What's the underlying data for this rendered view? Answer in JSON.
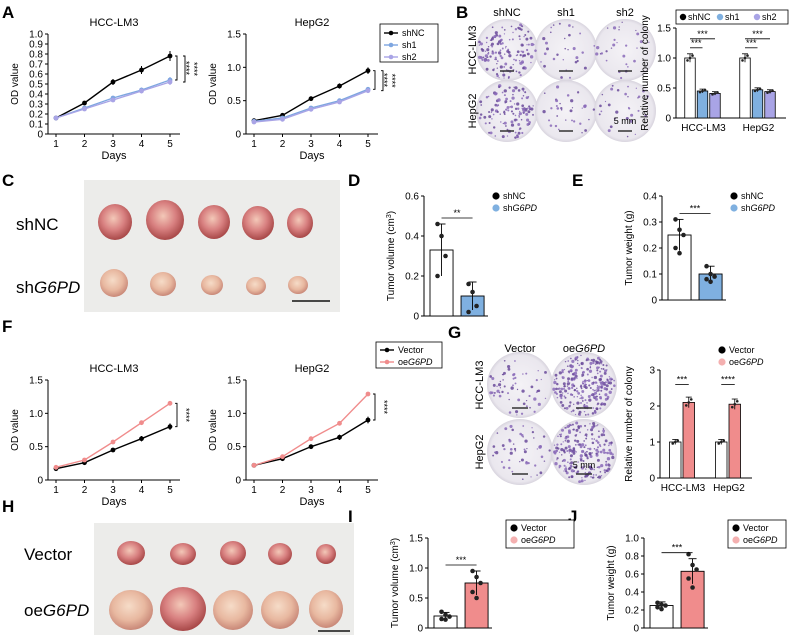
{
  "panels": {
    "A": "A",
    "B": "B",
    "C": "C",
    "D": "D",
    "E": "E",
    "F": "F",
    "G": "G",
    "H": "H",
    "I": "I",
    "J": "J"
  },
  "colors": {
    "black": "#000000",
    "blue": "#7ea6e0",
    "lavender": "#a9a4e6",
    "pink": "#f08c8c",
    "lightpink": "#f4b0b0",
    "barblue": "#7fb0e0"
  },
  "plate_labels": {
    "B_cols": [
      "shNC",
      "sh1",
      "sh2"
    ],
    "B_rows": [
      "HCC-LM3",
      "HepG2"
    ],
    "B_scale": "5 mm",
    "G_cols": [
      "Vector",
      "oeG6PD"
    ],
    "G_rows": [
      "HCC-LM3",
      "HepG2"
    ],
    "G_scale": "5 mm"
  },
  "photo_labels": {
    "C": [
      "shNC",
      "shG6PD"
    ],
    "H": [
      "Vector",
      "oeG6PD"
    ]
  },
  "chart_data": [
    {
      "id": "A1",
      "type": "line",
      "title": "HCC-LM3",
      "xlabel": "Days",
      "ylabel": "OD value",
      "x": [
        1,
        2,
        3,
        4,
        5
      ],
      "ylim": [
        0,
        1.0
      ],
      "yticks": [
        "0",
        "0.1",
        "0.2",
        "0.3",
        "0.4",
        "0.5",
        "0.6",
        "0.7",
        "0.8",
        "0.9",
        "1.0"
      ],
      "series": [
        {
          "name": "shNC",
          "values": [
            0.16,
            0.31,
            0.52,
            0.64,
            0.78
          ]
        },
        {
          "name": "sh1",
          "values": [
            0.16,
            0.26,
            0.36,
            0.44,
            0.54
          ]
        },
        {
          "name": "sh2",
          "values": [
            0.16,
            0.25,
            0.34,
            0.43,
            0.52
          ]
        }
      ],
      "annotations": [
        "****",
        "****"
      ]
    },
    {
      "id": "A2",
      "type": "line",
      "title": "HepG2",
      "xlabel": "Days",
      "ylabel": "OD value",
      "x": [
        1,
        2,
        3,
        4,
        5
      ],
      "ylim": [
        0,
        1.5
      ],
      "yticks": [
        "0",
        "0.5",
        "1.0",
        "1.5"
      ],
      "series": [
        {
          "name": "shNC",
          "values": [
            0.2,
            0.28,
            0.53,
            0.72,
            0.95
          ]
        },
        {
          "name": "sh1",
          "values": [
            0.19,
            0.24,
            0.39,
            0.5,
            0.67
          ]
        },
        {
          "name": "sh2",
          "values": [
            0.18,
            0.22,
            0.37,
            0.48,
            0.65
          ]
        }
      ],
      "legend": [
        "shNC",
        "sh1",
        "sh2"
      ],
      "annotations": [
        "****",
        "****"
      ]
    },
    {
      "id": "B",
      "type": "bar",
      "ylabel": "Relative number of colony",
      "ylim": [
        0,
        1.5
      ],
      "yticks": [
        "0",
        "0.5",
        "1.0",
        "1.5"
      ],
      "categories": [
        "HCC-LM3",
        "HepG2"
      ],
      "series": [
        {
          "name": "shNC",
          "values": [
            1.0,
            1.0
          ]
        },
        {
          "name": "sh1",
          "values": [
            0.45,
            0.47
          ]
        },
        {
          "name": "sh2",
          "values": [
            0.41,
            0.44
          ]
        }
      ],
      "legend": [
        "shNC",
        "sh1",
        "sh2"
      ],
      "annotations": [
        "***",
        "***",
        "***",
        "***"
      ]
    },
    {
      "id": "D",
      "type": "bar",
      "ylabel": "Tumor volume (cm³)",
      "ylim": [
        0,
        0.6
      ],
      "yticks": [
        "0",
        "0.2",
        "0.4",
        "0.6"
      ],
      "categories": [
        "shNC",
        "shG6PD"
      ],
      "values": [
        0.33,
        0.1
      ],
      "errors": [
        0.13,
        0.07
      ],
      "points": [
        [
          0.46,
          0.4,
          0.3,
          0.2
        ],
        [
          0.16,
          0.12,
          0.05,
          0.02
        ]
      ],
      "legend": [
        "shNC",
        "shG6PD"
      ],
      "annotations": [
        "**"
      ]
    },
    {
      "id": "E",
      "type": "bar",
      "ylabel": "Tumor weight (g)",
      "ylim": [
        0,
        0.4
      ],
      "yticks": [
        "0",
        "0.1",
        "0.2",
        "0.3",
        "0.4"
      ],
      "categories": [
        "shNC",
        "shG6PD"
      ],
      "values": [
        0.25,
        0.1
      ],
      "errors": [
        0.06,
        0.03
      ],
      "points": [
        [
          0.31,
          0.27,
          0.25,
          0.2,
          0.18
        ],
        [
          0.13,
          0.1,
          0.09,
          0.08,
          0.07
        ]
      ],
      "legend": [
        "shNC",
        "shG6PD"
      ],
      "annotations": [
        "***"
      ]
    },
    {
      "id": "F1",
      "type": "line",
      "title": "HCC-LM3",
      "xlabel": "Days",
      "ylabel": "OD value",
      "x": [
        1,
        2,
        3,
        4,
        5
      ],
      "ylim": [
        0,
        1.5
      ],
      "yticks": [
        "0",
        "0.5",
        "1.0",
        "1.5"
      ],
      "series": [
        {
          "name": "Vector",
          "values": [
            0.17,
            0.26,
            0.45,
            0.62,
            0.8
          ]
        },
        {
          "name": "oeG6PD",
          "values": [
            0.19,
            0.3,
            0.57,
            0.86,
            1.15
          ]
        }
      ],
      "annotations": [
        "****"
      ]
    },
    {
      "id": "F2",
      "type": "line",
      "title": "HepG2",
      "xlabel": "Days",
      "ylabel": "OD value",
      "x": [
        1,
        2,
        3,
        4,
        5
      ],
      "ylim": [
        0,
        1.5
      ],
      "yticks": [
        "0",
        "0.5",
        "1.0",
        "1.5"
      ],
      "series": [
        {
          "name": "Vector",
          "values": [
            0.22,
            0.32,
            0.5,
            0.64,
            0.9
          ]
        },
        {
          "name": "oeG6PD",
          "values": [
            0.22,
            0.35,
            0.62,
            0.85,
            1.29
          ]
        }
      ],
      "legend": [
        "Vector",
        "oeG6PD"
      ],
      "annotations": [
        "****"
      ]
    },
    {
      "id": "G",
      "type": "bar",
      "ylabel": "Relative number of colony",
      "ylim": [
        0,
        3
      ],
      "yticks": [
        "0",
        "1",
        "2",
        "3"
      ],
      "categories": [
        "HCC-LM3",
        "HepG2"
      ],
      "series": [
        {
          "name": "Vector",
          "values": [
            1.0,
            1.0
          ]
        },
        {
          "name": "oeG6PD",
          "values": [
            2.1,
            2.05
          ]
        }
      ],
      "legend": [
        "Vector",
        "oeG6PD"
      ],
      "annotations": [
        "***",
        "****"
      ]
    },
    {
      "id": "I",
      "type": "bar",
      "ylabel": "Tumor volume (cm³)",
      "ylim": [
        0,
        1.5
      ],
      "yticks": [
        "0",
        "0.5",
        "1.0",
        "1.5"
      ],
      "categories": [
        "Vector",
        "oeG6PD"
      ],
      "values": [
        0.2,
        0.75
      ],
      "errors": [
        0.06,
        0.2
      ],
      "points": [
        [
          0.27,
          0.22,
          0.19,
          0.15,
          0.14
        ],
        [
          0.95,
          0.85,
          0.75,
          0.6,
          0.5
        ]
      ],
      "legend": [
        "Vector",
        "oeG6PD"
      ],
      "annotations": [
        "***"
      ]
    },
    {
      "id": "J",
      "type": "bar",
      "ylabel": "Tumor weight (g)",
      "ylim": [
        0,
        1.0
      ],
      "yticks": [
        "0",
        "0.2",
        "0.4",
        "0.6",
        "0.8",
        "1.0"
      ],
      "categories": [
        "Vector",
        "oeG6PD"
      ],
      "values": [
        0.25,
        0.63
      ],
      "errors": [
        0.04,
        0.14
      ],
      "points": [
        [
          0.28,
          0.26,
          0.25,
          0.23,
          0.21
        ],
        [
          0.82,
          0.7,
          0.65,
          0.55,
          0.45
        ]
      ],
      "legend": [
        "Vector",
        "oeG6PD"
      ],
      "annotations": [
        "***"
      ]
    }
  ]
}
